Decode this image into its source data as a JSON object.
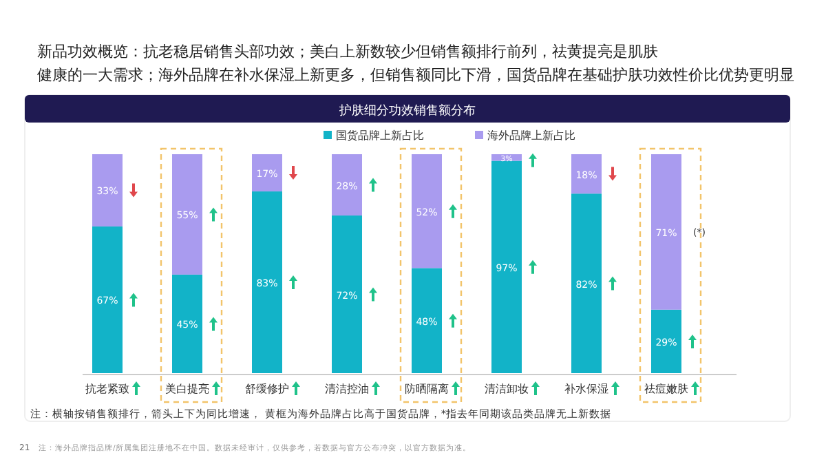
{
  "chart_data": {
    "type": "bar",
    "title": "新品功效概览：抗老稳居销售头部功效；美白上新数较少但销售额排行前列，祛黄提亮是肌肤健康的一大需求；海外品牌在补水保湿上新更多，但销售额同比下滑，国货品牌在基础护肤功效性价比优势更明显",
    "subtitle": "护肤细分功效销售额分布",
    "categories": [
      "抗老紧致",
      "美白提亮",
      "舒缓修护",
      "清洁控油",
      "防晒隔离",
      "清洁卸妆",
      "补水保湿",
      "祛痘嫩肤"
    ],
    "stacked": true,
    "legend": "top",
    "series": [
      {
        "name": "国货品牌上新占比",
        "color": "#12b3c8",
        "values": [
          67,
          45,
          83,
          72,
          48,
          97,
          82,
          29
        ],
        "value_labels": [
          "67%",
          "45%",
          "83%",
          "72%",
          "48%",
          "97%",
          "82%",
          "29%"
        ]
      },
      {
        "name": "海外品牌上新占比",
        "color": "#a99bef",
        "values": [
          33,
          55,
          17,
          28,
          52,
          3,
          18,
          71
        ],
        "value_labels": [
          "33%",
          "55%",
          "17%",
          "28%",
          "52%",
          "3%",
          "18%",
          "71%"
        ]
      }
    ],
    "annotations": [
      "(*)",
      "注：横轴按销售额排行，箭头上下为同比增速， 黄框为海外品牌占比高于国货品牌，*指去年同期该品类品牌无上新数据",
      "21",
      "注：海外品牌指品牌/所属集团注册地不在中国。数据未经审计，仅供参考，若数据与官方公布冲突，以官方数据为准。"
    ]
  }
}
